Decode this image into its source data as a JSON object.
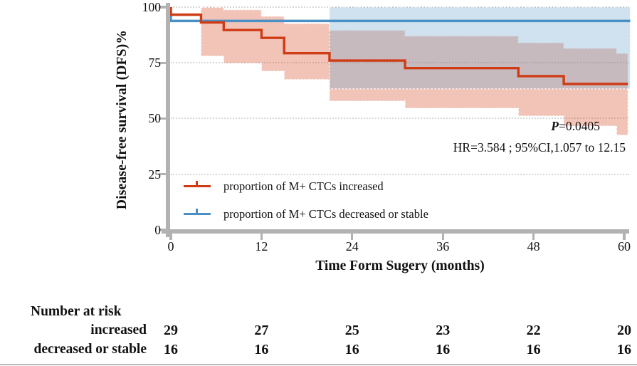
{
  "y_axis": {
    "title": "Disease-free survival (DFS)%",
    "ticks": [
      "0",
      "25",
      "50",
      "75",
      "100"
    ]
  },
  "x_axis": {
    "title": "Time Form Sugery (months)",
    "ticks": [
      "0",
      "12",
      "24",
      "36",
      "48",
      "60"
    ]
  },
  "legend": {
    "items": [
      {
        "label": "proportion of M+ CTCs increased",
        "color": "#cf3b14"
      },
      {
        "label": "proportion of M+ CTCs decreased or stable",
        "color": "#4a90c4"
      }
    ]
  },
  "annotations": {
    "p_prefix": "P",
    "p_rest": "=0.0405",
    "hr": "HR=3.584 ; 95%CI,1.057 to 12.15"
  },
  "risk_table": {
    "title": "Number at risk",
    "rows": [
      {
        "label": "increased",
        "counts": [
          "29",
          "27",
          "25",
          "23",
          "22",
          "20"
        ]
      },
      {
        "label": "decreased or stable",
        "counts": [
          "16",
          "16",
          "16",
          "16",
          "16",
          "16"
        ]
      }
    ]
  },
  "chart_data": {
    "type": "line",
    "variant": "kaplan_meier_step_with_ci_bands",
    "title": "",
    "xlabel": "Time Form Sugery (months)",
    "ylabel": "Disease-free survival (DFS)%",
    "xlim": [
      0,
      60
    ],
    "ylim": [
      0,
      100
    ],
    "xticks": [
      0,
      12,
      24,
      36,
      48,
      60
    ],
    "yticks": [
      0,
      25,
      50,
      75,
      100
    ],
    "grid": {
      "horizontal_dotted_at": [
        25,
        50,
        75,
        100
      ]
    },
    "legend_position": "inside lower-left",
    "series": [
      {
        "name": "proportion of M+ CTCs increased",
        "color": "#cf3b14",
        "steps": [
          [
            0,
            100
          ],
          [
            4,
            96.6
          ],
          [
            7,
            93.1
          ],
          [
            12,
            89.7
          ],
          [
            15,
            86.2
          ],
          [
            21,
            79.3
          ],
          [
            31,
            76.0
          ],
          [
            46,
            72.6
          ],
          [
            52,
            69.0
          ],
          [
            59,
            65.5
          ],
          [
            60.5,
            65.5
          ]
        ],
        "ci_color": "rgba(214,70,33,0.32)",
        "ci_steps": [
          {
            "x": 4,
            "upper": 99.9,
            "lower": 78.0
          },
          {
            "x": 7,
            "upper": 98.8,
            "lower": 74.8
          },
          {
            "x": 12,
            "upper": 95.9,
            "lower": 71.2
          },
          {
            "x": 15,
            "upper": 92.6,
            "lower": 67.5
          },
          {
            "x": 21,
            "upper": 89.6,
            "lower": 57.8
          },
          {
            "x": 31,
            "upper": 87.0,
            "lower": 54.6
          },
          {
            "x": 46,
            "upper": 84.0,
            "lower": 51.1
          },
          {
            "x": 52,
            "upper": 81.5,
            "lower": 46.6
          },
          {
            "x": 59,
            "upper": 79.2,
            "lower": 42.5
          }
        ],
        "ci_x_end": 60.5
      },
      {
        "name": "proportion of M+ CTCs decreased or stable",
        "color": "#4a90c4",
        "steps": [
          [
            0,
            100
          ],
          [
            21,
            93.8
          ],
          [
            60.8,
            93.8
          ]
        ],
        "ci_color": "rgba(108,165,205,0.32)",
        "ci_steps": [
          {
            "x": 21,
            "upper": 100,
            "lower": 63.3
          }
        ],
        "ci_x_end": 60.8
      }
    ],
    "stats": {
      "p_value": 0.0405,
      "hazard_ratio": 3.584,
      "ci_95": [
        1.057,
        12.15
      ]
    },
    "number_at_risk": {
      "times": [
        0,
        12,
        24,
        36,
        48,
        60
      ],
      "increased": [
        29,
        27,
        25,
        23,
        22,
        20
      ],
      "decreased_or_stable": [
        16,
        16,
        16,
        16,
        16,
        16
      ]
    }
  }
}
